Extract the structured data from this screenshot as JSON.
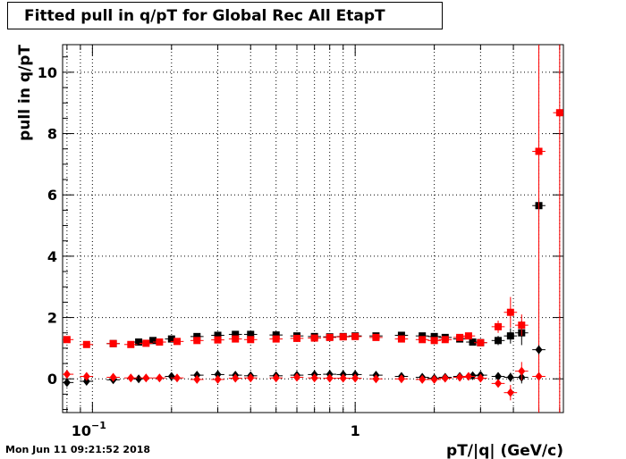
{
  "chart_data": {
    "type": "scatter",
    "title": "Fitted pull in q/pT for Global Rec All EtapT",
    "xlabel": "pT/|q| (GeV/c)",
    "ylabel": "pull in q/pT",
    "x_scale": "log",
    "xlim": [
      0.077,
      6.2
    ],
    "ylim": [
      -1.1,
      10.9
    ],
    "grid": true,
    "x_ticks": [
      {
        "value": 0.1,
        "label": "10",
        "sup": "−1"
      },
      {
        "value": 1,
        "label": "1",
        "sup": ""
      }
    ],
    "y_ticks": [
      0,
      2,
      4,
      6,
      8,
      10
    ],
    "colors": {
      "black": "#000000",
      "red": "#ff0000"
    },
    "series": [
      {
        "marker": "square",
        "color": "#000000",
        "x": [
          0.12,
          0.15,
          0.17,
          0.2,
          0.25,
          0.3,
          0.35,
          0.4,
          0.5,
          0.6,
          0.7,
          0.8,
          0.9,
          1.0,
          1.2,
          1.5,
          1.8,
          2.0,
          2.2,
          2.5,
          2.8,
          3.0,
          3.5,
          3.9,
          4.3,
          5.0
        ],
        "y": [
          1.15,
          1.2,
          1.25,
          1.3,
          1.38,
          1.42,
          1.45,
          1.45,
          1.43,
          1.4,
          1.38,
          1.37,
          1.38,
          1.4,
          1.4,
          1.42,
          1.4,
          1.38,
          1.35,
          1.3,
          1.2,
          1.18,
          1.25,
          1.4,
          1.5,
          5.65
        ],
        "yerr": [
          0.05,
          0.05,
          0.05,
          0.05,
          0.05,
          0.05,
          0.05,
          0.05,
          0.05,
          0.05,
          0.05,
          0.05,
          0.05,
          0.05,
          0.05,
          0.06,
          0.06,
          0.06,
          0.07,
          0.08,
          0.1,
          0.1,
          0.15,
          0.25,
          0.4,
          0.2
        ]
      },
      {
        "marker": "square",
        "color": "#ff0000",
        "x": [
          0.08,
          0.095,
          0.12,
          0.14,
          0.16,
          0.18,
          0.21,
          0.25,
          0.3,
          0.35,
          0.4,
          0.5,
          0.6,
          0.7,
          0.8,
          0.9,
          1.0,
          1.2,
          1.5,
          1.8,
          2.0,
          2.2,
          2.5,
          2.7,
          3.0,
          3.5,
          3.9,
          4.3,
          5.0,
          6.0
        ],
        "y": [
          1.28,
          1.12,
          1.15,
          1.12,
          1.16,
          1.2,
          1.22,
          1.25,
          1.27,
          1.3,
          1.28,
          1.3,
          1.32,
          1.33,
          1.35,
          1.37,
          1.38,
          1.35,
          1.3,
          1.28,
          1.25,
          1.28,
          1.35,
          1.4,
          1.18,
          1.7,
          2.17,
          1.75,
          7.42,
          8.68
        ],
        "yerr": [
          0.05,
          0.05,
          0.05,
          0.05,
          0.05,
          0.05,
          0.05,
          0.05,
          0.05,
          0.05,
          0.05,
          0.05,
          0.05,
          0.05,
          0.05,
          0.05,
          0.05,
          0.05,
          0.05,
          0.06,
          0.06,
          0.07,
          0.08,
          0.1,
          0.1,
          0.2,
          0.5,
          0.35,
          10,
          10
        ]
      },
      {
        "marker": "diamond",
        "color": "#000000",
        "x": [
          0.08,
          0.095,
          0.12,
          0.15,
          0.2,
          0.25,
          0.3,
          0.35,
          0.4,
          0.5,
          0.6,
          0.7,
          0.8,
          0.9,
          1.0,
          1.2,
          1.5,
          1.8,
          2.0,
          2.2,
          2.5,
          2.8,
          3.0,
          3.5,
          3.9,
          4.3,
          5.0
        ],
        "y": [
          -0.12,
          -0.08,
          -0.03,
          0.0,
          0.08,
          0.12,
          0.14,
          0.12,
          0.1,
          0.1,
          0.12,
          0.14,
          0.15,
          0.14,
          0.14,
          0.12,
          0.08,
          0.05,
          0.02,
          0.05,
          0.08,
          0.1,
          0.12,
          0.08,
          0.05,
          0.05,
          0.95
        ],
        "yerr": [
          0.03,
          0.03,
          0.03,
          0.03,
          0.03,
          0.03,
          0.03,
          0.03,
          0.03,
          0.03,
          0.03,
          0.03,
          0.03,
          0.03,
          0.03,
          0.03,
          0.04,
          0.04,
          0.05,
          0.05,
          0.06,
          0.07,
          0.08,
          0.1,
          0.15,
          0.2,
          0.15
        ]
      },
      {
        "marker": "diamond",
        "color": "#ff0000",
        "x": [
          0.08,
          0.095,
          0.12,
          0.14,
          0.16,
          0.18,
          0.21,
          0.25,
          0.3,
          0.35,
          0.4,
          0.5,
          0.6,
          0.7,
          0.8,
          0.9,
          1.0,
          1.2,
          1.5,
          1.8,
          2.0,
          2.2,
          2.5,
          2.7,
          3.0,
          3.5,
          3.9,
          4.3,
          5.0
        ],
        "y": [
          0.15,
          0.08,
          0.05,
          0.03,
          0.03,
          0.03,
          0.03,
          -0.02,
          -0.02,
          0.02,
          0.03,
          0.03,
          0.05,
          0.03,
          0.02,
          0.02,
          0.02,
          0.0,
          0.0,
          -0.02,
          -0.02,
          0.02,
          0.05,
          0.08,
          0.02,
          -0.15,
          -0.45,
          0.25,
          0.08
        ],
        "yerr": [
          0.03,
          0.03,
          0.03,
          0.03,
          0.03,
          0.03,
          0.03,
          0.03,
          0.03,
          0.03,
          0.03,
          0.03,
          0.03,
          0.03,
          0.03,
          0.03,
          0.03,
          0.03,
          0.04,
          0.04,
          0.05,
          0.05,
          0.06,
          0.07,
          0.08,
          0.12,
          0.25,
          0.3,
          0.15
        ]
      }
    ]
  },
  "timestamp": "Mon Jun 11 09:21:52 2018"
}
